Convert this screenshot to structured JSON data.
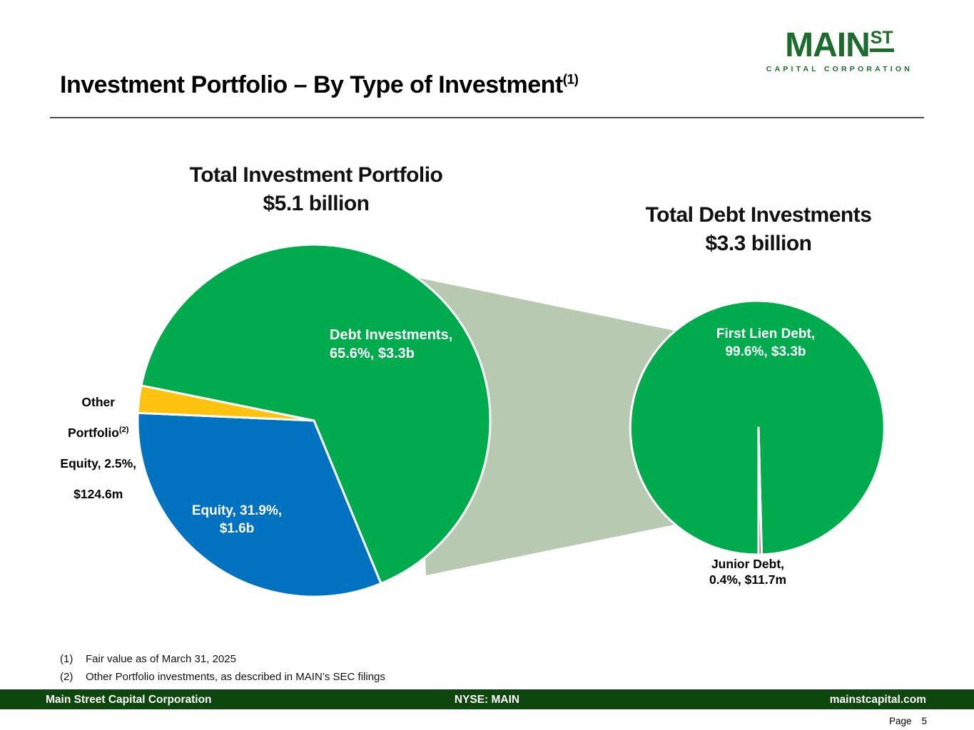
{
  "header": {
    "title": "Investment Portfolio – By Type of Investment",
    "title_sup": "(1)"
  },
  "logo": {
    "main": "MAIN",
    "st": "ST",
    "subtitle": "CAPITAL CORPORATION",
    "color": "#1e6b2e"
  },
  "connector": {
    "color": "#b8c9b2"
  },
  "chart_data": [
    {
      "type": "pie",
      "title": "Total Investment Portfolio",
      "subtitle": "$5.1 billion",
      "start_angle_deg": 281.5,
      "slices": [
        {
          "label": "Debt Investments",
          "pct": 65.6,
          "amount": "$3.3b",
          "color": "#00ab4e"
        },
        {
          "label": "Equity",
          "pct": 31.9,
          "amount": "$1.6b",
          "color": "#0072bf"
        },
        {
          "label": "Other Portfolio Equity",
          "pct": 2.5,
          "amount": "$124.6m",
          "color": "#ffc20e"
        }
      ]
    },
    {
      "type": "pie",
      "title": "Total Debt Investments",
      "subtitle": "$3.3 billion",
      "start_angle_deg": 180,
      "slices": [
        {
          "label": "First Lien Debt",
          "pct": 99.6,
          "amount": "$3.3b",
          "color": "#00ab4e"
        },
        {
          "label": "Junior Debt",
          "pct": 0.4,
          "amount": "$11.7m",
          "color": "#b0402f"
        }
      ]
    }
  ],
  "labels": {
    "debt": {
      "text": "Debt Investments,\n65.6%, $3.3b"
    },
    "equity": {
      "text": "Equity, 31.9%,\n$1.6b"
    },
    "other": {
      "line1": "Other",
      "line2": "Portfolio",
      "sup": "(2)",
      "line3": "Equity, 2.5%,",
      "line4": "$124.6m"
    },
    "first_lien": {
      "text": "First Lien Debt,\n99.6%, $3.3b"
    },
    "junior": {
      "text": "Junior Debt,\n0.4%, $11.7m"
    }
  },
  "footnotes": [
    {
      "num": "(1)",
      "text": "Fair value as of March 31, 2025"
    },
    {
      "num": "(2)",
      "text": "Other Portfolio investments, as described in MAIN’s SEC filings"
    }
  ],
  "footer": {
    "bar_color": "#0d470d",
    "left": "Main Street Capital Corporation",
    "center": "NYSE: MAIN",
    "right": "mainstcapital.com",
    "page_label": "Page",
    "page_number": "5"
  }
}
